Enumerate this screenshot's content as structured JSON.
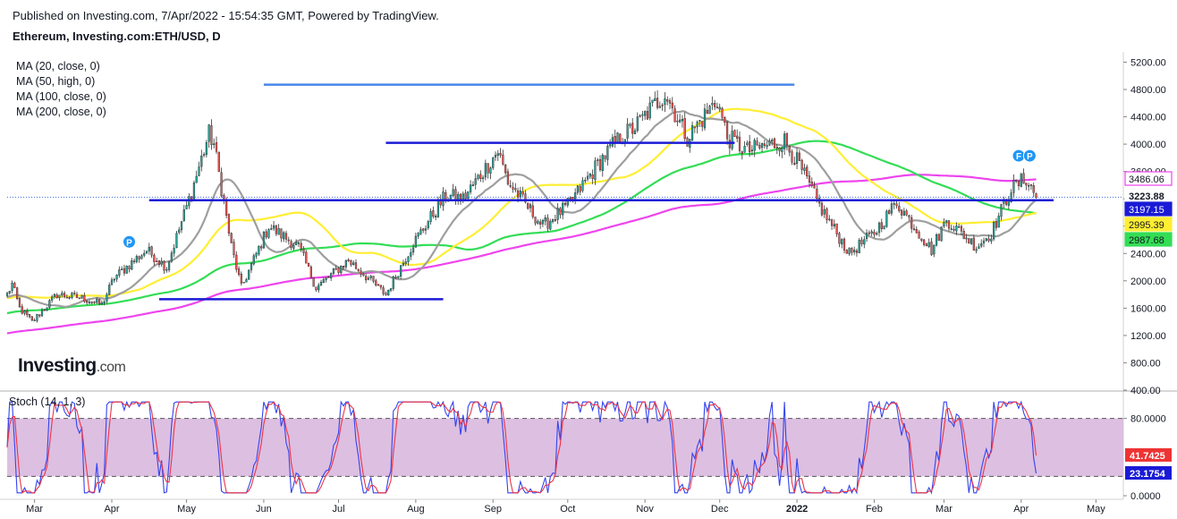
{
  "header": {
    "published": "Published on Investing.com, 7/Apr/2022 - 15:54:35 GMT, Powered by TradingView.",
    "title": "Ethereum, Investing.com:ETH/USD, D"
  },
  "logo": {
    "main": "Investing",
    "suffix": ".com"
  },
  "ma_legend": [
    "MA (20, close, 0)",
    "MA (50, high, 0)",
    "MA (100, close, 0)",
    "MA (200, close, 0)"
  ],
  "stoch_label": "Stoch (14, 1, 3)",
  "colors": {
    "up": "#26a69a",
    "down": "#ef5350",
    "ma20": "#9e9e9e",
    "ma50": "#ffee33",
    "ma100": "#33dd55",
    "ma200": "#ee44ee",
    "level": "#1a1ad6",
    "top_level": "#4a86e8",
    "stoch_k": "#3344ee",
    "stoch_d": "#ee3344",
    "stoch_band": "#d9b8df"
  },
  "chart_data": {
    "type": "candlestick",
    "x_labels": [
      "Mar",
      "Apr",
      "May",
      "Jun",
      "Jul",
      "Aug",
      "Sep",
      "Oct",
      "Nov",
      "Dec",
      "2022",
      "Feb",
      "Mar",
      "Apr",
      "May"
    ],
    "x_range": [
      "2021-02-18",
      "2022-05-12"
    ],
    "y_ticks": [
      "5200.00",
      "4800.00",
      "4400.00",
      "4000.00",
      "3600.00",
      "3200.00",
      "2800.00",
      "2400.00",
      "2000.00",
      "1600.00",
      "1200.00",
      "800.00",
      "400.00"
    ],
    "ylim": [
      400,
      5350
    ],
    "price_path": [
      [
        "2021-02-18",
        1800
      ],
      [
        "2021-02-20",
        1950
      ],
      [
        "2021-02-23",
        1600
      ],
      [
        "2021-02-28",
        1400
      ],
      [
        "2021-03-10",
        1800
      ],
      [
        "2021-03-20",
        1750
      ],
      [
        "2021-03-28",
        1650
      ],
      [
        "2021-04-02",
        2050
      ],
      [
        "2021-04-15",
        2450
      ],
      [
        "2021-04-23",
        2200
      ],
      [
        "2021-05-03",
        3300
      ],
      [
        "2021-05-10",
        4150
      ],
      [
        "2021-05-12",
        4000
      ],
      [
        "2021-05-19",
        2500
      ],
      [
        "2021-05-23",
        1900
      ],
      [
        "2021-06-03",
        2800
      ],
      [
        "2021-06-15",
        2500
      ],
      [
        "2021-06-22",
        1900
      ],
      [
        "2021-07-05",
        2300
      ],
      [
        "2021-07-20",
        1800
      ],
      [
        "2021-07-31",
        2550
      ],
      [
        "2021-08-13",
        3250
      ],
      [
        "2021-08-20",
        3200
      ],
      [
        "2021-09-03",
        3900
      ],
      [
        "2021-09-07",
        3450
      ],
      [
        "2021-09-21",
        2800
      ],
      [
        "2021-10-01",
        3100
      ],
      [
        "2021-10-15",
        3800
      ],
      [
        "2021-10-22",
        4100
      ],
      [
        "2021-10-28",
        4250
      ],
      [
        "2021-11-09",
        4750
      ],
      [
        "2021-11-18",
        4100
      ],
      [
        "2021-11-30",
        4650
      ],
      [
        "2021-12-04",
        4100
      ],
      [
        "2021-12-12",
        3900
      ],
      [
        "2021-12-27",
        4050
      ],
      [
        "2022-01-01",
        3750
      ],
      [
        "2022-01-10",
        3100
      ],
      [
        "2022-01-22",
        2400
      ],
      [
        "2022-02-01",
        2700
      ],
      [
        "2022-02-10",
        3150
      ],
      [
        "2022-02-24",
        2450
      ],
      [
        "2022-03-02",
        2900
      ],
      [
        "2022-03-14",
        2500
      ],
      [
        "2022-03-20",
        2700
      ],
      [
        "2022-03-28",
        3350
      ],
      [
        "2022-04-03",
        3500
      ],
      [
        "2022-04-07",
        3223.88
      ]
    ],
    "levels": [
      {
        "price": 4870,
        "from": "2021-06-01",
        "to": "2021-12-31",
        "color": "top_level"
      },
      {
        "price": 4020,
        "from": "2021-07-20",
        "to": "2021-12-07",
        "color": "level"
      },
      {
        "price": 3180,
        "from": "2021-04-16",
        "to": "2022-04-14",
        "color": "level"
      },
      {
        "price": 1730,
        "from": "2021-04-20",
        "to": "2021-08-12",
        "color": "level"
      }
    ],
    "price_labels": [
      {
        "label": "3486.06",
        "series": "MA (200, close, 0)"
      },
      {
        "label": "3223.88",
        "series": "ETH/USD"
      },
      {
        "label": "3197.15",
        "series": "Horizontal line"
      },
      {
        "label": "2995.39",
        "series": "MA (50, high, 0)"
      },
      {
        "label": "2987.68",
        "series": "MA (100, close, 0)"
      }
    ],
    "last": {
      "ma200": 3486.06,
      "ma50": 2995.39,
      "ma100": 2987.68,
      "close": 3223.88,
      "line": 3197.15
    },
    "stochastic": {
      "yticks": [
        "80.0000",
        "0.0000"
      ],
      "ylim": [
        0,
        100
      ],
      "bands": [
        20,
        80
      ],
      "last_d": "41.7425",
      "last_k": "23.1754",
      "last_d_value": 41.7425,
      "last_k_value": 23.1754
    },
    "markers": [
      {
        "date": "2021-04-08",
        "label": "P"
      },
      {
        "date": "2022-03-31",
        "label": "F"
      },
      {
        "date": "2022-04-03",
        "label": "P"
      }
    ]
  }
}
